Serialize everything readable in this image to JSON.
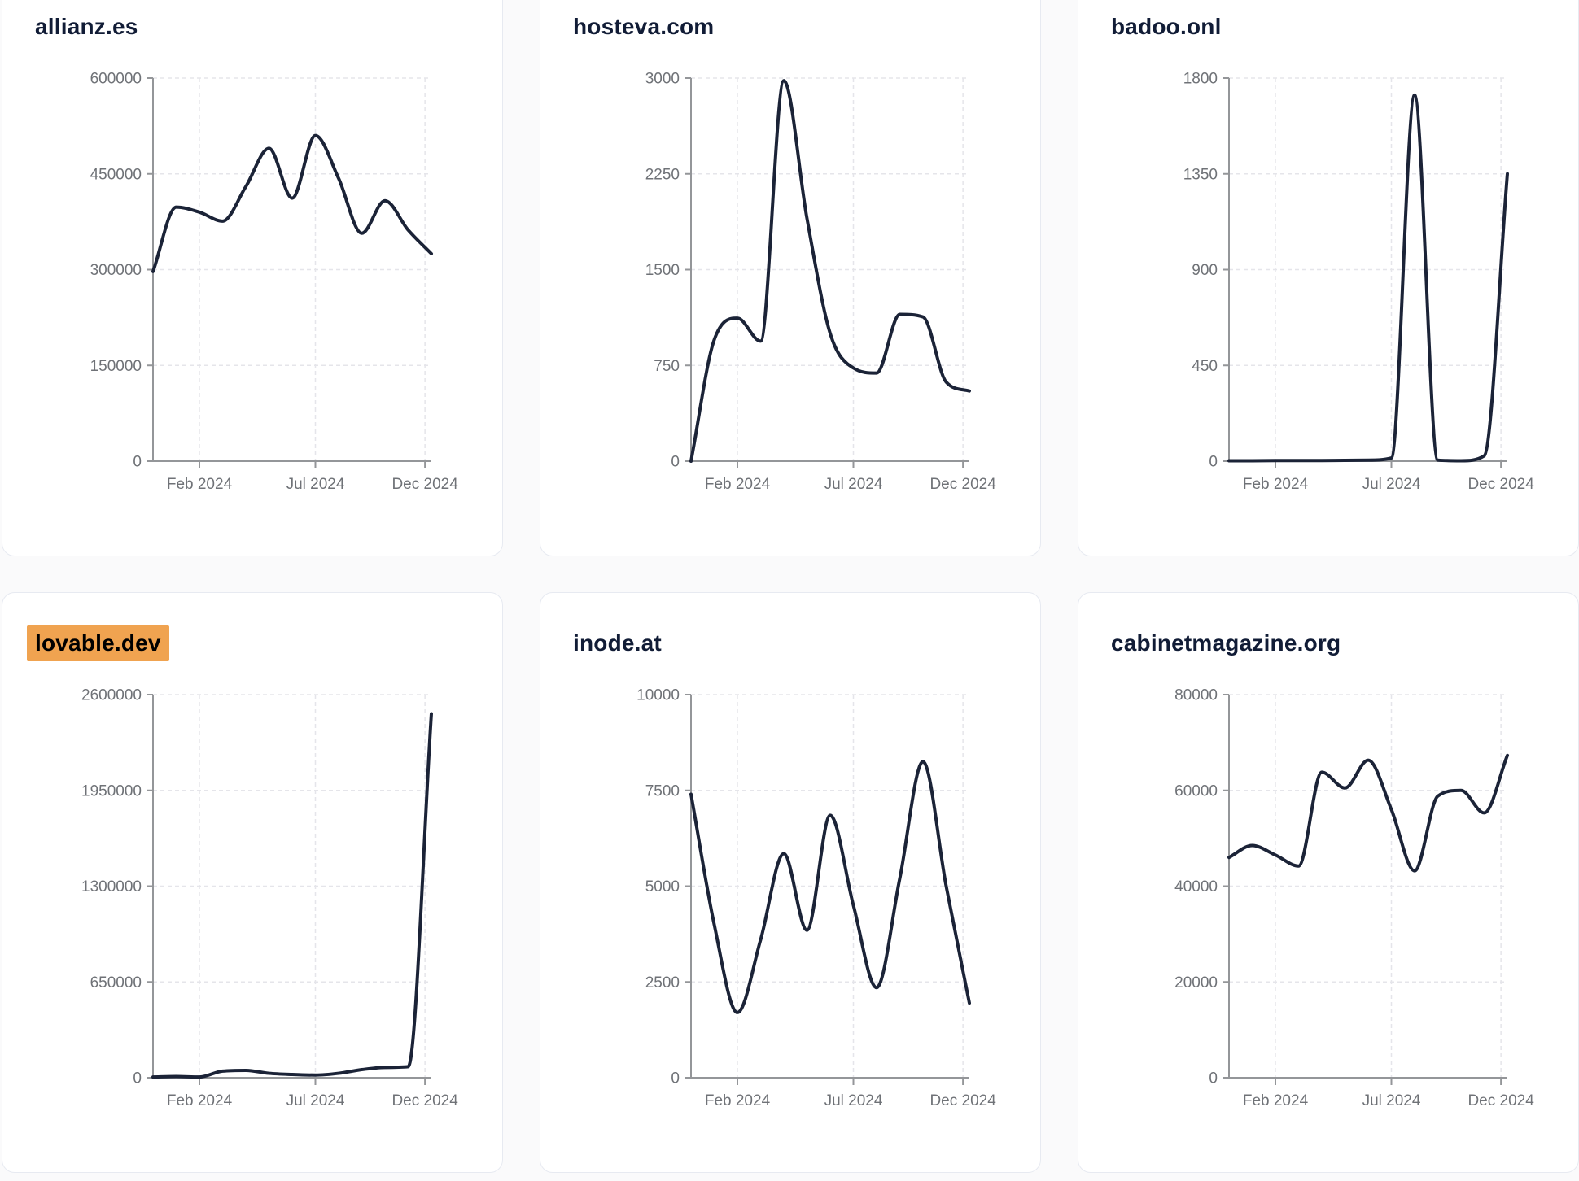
{
  "page": {
    "background_color": "#fafafb",
    "card_background": "#ffffff",
    "card_border_color": "#e7eaf1",
    "title_color": "#111c36",
    "highlight_color": "#f0a350",
    "line_color": "#1b2337",
    "axis_color": "#949699",
    "gridline_color": "#e5e5ea",
    "tick_label_color": "#6f7277"
  },
  "cards": [
    {
      "title": "allianz.es",
      "highlighted": false
    },
    {
      "title": "hosteva.com",
      "highlighted": false
    },
    {
      "title": "badoo.onl",
      "highlighted": false
    },
    {
      "title": "lovable.dev",
      "highlighted": true
    },
    {
      "title": "inode.at",
      "highlighted": false
    },
    {
      "title": "cabinetmagazine.org",
      "highlighted": false
    }
  ],
  "chart_data": [
    {
      "type": "line",
      "title": "allianz.es",
      "x": [
        "Dec 2023",
        "Jan 2024",
        "Feb 2024",
        "Mar 2024",
        "Apr 2024",
        "May 2024",
        "Jun 2024",
        "Jul 2024",
        "Aug 2024",
        "Sep 2024",
        "Oct 2024",
        "Nov 2024",
        "Dec 2024"
      ],
      "values": [
        297000,
        398000,
        390000,
        376000,
        430000,
        490000,
        412000,
        510000,
        443000,
        357000,
        408000,
        362000,
        325000
      ],
      "ylim": [
        0,
        600000
      ],
      "yticks": [
        0,
        150000,
        300000,
        450000,
        600000
      ],
      "xtick_labels": [
        "Feb 2024",
        "Jul 2024",
        "Dec 2024"
      ],
      "grid": "dashed",
      "legend": "none"
    },
    {
      "type": "line",
      "title": "hosteva.com",
      "x": [
        "Dec 2023",
        "Jan 2024",
        "Feb 2024",
        "Mar 2024",
        "Apr 2024",
        "May 2024",
        "Jun 2024",
        "Jul 2024",
        "Aug 2024",
        "Sep 2024",
        "Oct 2024",
        "Nov 2024",
        "Dec 2024"
      ],
      "values": [
        0,
        950,
        1120,
        940,
        2980,
        1900,
        1000,
        730,
        690,
        1150,
        1130,
        620,
        550
      ],
      "ylim": [
        0,
        3000
      ],
      "yticks": [
        0,
        750,
        1500,
        2250,
        3000
      ],
      "xtick_labels": [
        "Feb 2024",
        "Jul 2024",
        "Dec 2024"
      ],
      "grid": "dashed",
      "legend": "none"
    },
    {
      "type": "line",
      "title": "badoo.onl",
      "x": [
        "Dec 2023",
        "Jan 2024",
        "Feb 2024",
        "Mar 2024",
        "Apr 2024",
        "May 2024",
        "Jun 2024",
        "Jul 2024",
        "Aug 2024",
        "Sep 2024",
        "Oct 2024",
        "Nov 2024",
        "Dec 2024"
      ],
      "values": [
        2,
        2,
        3,
        3,
        3,
        4,
        5,
        15,
        1720,
        5,
        2,
        25,
        1350
      ],
      "ylim": [
        0,
        1800
      ],
      "yticks": [
        0,
        450,
        900,
        1350,
        1800
      ],
      "xtick_labels": [
        "Feb 2024",
        "Jul 2024",
        "Dec 2024"
      ],
      "grid": "dashed",
      "legend": "none"
    },
    {
      "type": "line",
      "title": "lovable.dev",
      "x": [
        "Dec 2023",
        "Jan 2024",
        "Feb 2024",
        "Mar 2024",
        "Apr 2024",
        "May 2024",
        "Jun 2024",
        "Jul 2024",
        "Aug 2024",
        "Sep 2024",
        "Oct 2024",
        "Nov 2024",
        "Dec 2024"
      ],
      "values": [
        5000,
        8000,
        5000,
        45000,
        50000,
        30000,
        22000,
        18000,
        30000,
        55000,
        70000,
        75000,
        2470000
      ],
      "ylim": [
        0,
        2600000
      ],
      "yticks": [
        0,
        650000,
        1300000,
        1950000,
        2600000
      ],
      "xtick_labels": [
        "Feb 2024",
        "Jul 2024",
        "Dec 2024"
      ],
      "grid": "dashed",
      "legend": "none"
    },
    {
      "type": "line",
      "title": "inode.at",
      "x": [
        "Dec 2023",
        "Jan 2024",
        "Feb 2024",
        "Mar 2024",
        "Apr 2024",
        "May 2024",
        "Jun 2024",
        "Jul 2024",
        "Aug 2024",
        "Sep 2024",
        "Oct 2024",
        "Nov 2024",
        "Dec 2024"
      ],
      "values": [
        7400,
        4000,
        1700,
        3600,
        5850,
        3850,
        6850,
        4500,
        2350,
        5200,
        8250,
        5000,
        1950
      ],
      "ylim": [
        0,
        10000
      ],
      "yticks": [
        0,
        2500,
        5000,
        7500,
        10000
      ],
      "xtick_labels": [
        "Feb 2024",
        "Jul 2024",
        "Dec 2024"
      ],
      "grid": "dashed",
      "legend": "none"
    },
    {
      "type": "line",
      "title": "cabinetmagazine.org",
      "x": [
        "Dec 2023",
        "Jan 2024",
        "Feb 2024",
        "Mar 2024",
        "Apr 2024",
        "May 2024",
        "Jun 2024",
        "Jul 2024",
        "Aug 2024",
        "Sep 2024",
        "Oct 2024",
        "Nov 2024",
        "Dec 2024"
      ],
      "values": [
        46000,
        48500,
        46500,
        44200,
        63800,
        60500,
        66300,
        56000,
        43200,
        58800,
        60000,
        55300,
        67300
      ],
      "ylim": [
        0,
        80000
      ],
      "yticks": [
        0,
        20000,
        40000,
        60000,
        80000
      ],
      "xtick_labels": [
        "Feb 2024",
        "Jul 2024",
        "Dec 2024"
      ],
      "grid": "dashed",
      "legend": "none"
    }
  ]
}
